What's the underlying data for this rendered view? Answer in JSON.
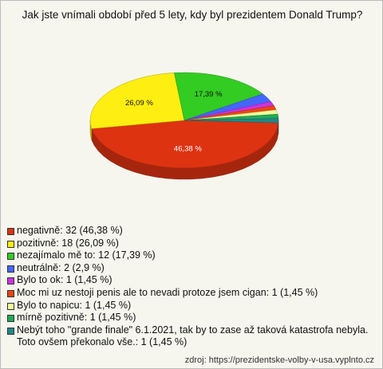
{
  "chart_data": {
    "type": "pie",
    "title": "Jak jste vnímali období před 5 lety, kdy byl prezidentem Donald Trump?",
    "categories": [
      "negativně: 32 (46,38 %)",
      "pozitivně: 18 (26,09 %)",
      "nezajímalo mě to: 12 (17,39 %)",
      "neutrálně: 2 (2,9 %)",
      "Bylo to ok: 1 (1,45 %)",
      "Moc mi uz nestoji penis ale to nevadi protoze jsem cigan: 1 (1,45 %)",
      "Bylo to napicu: 1 (1,45 %)",
      "mírně pozitivně: 1 (1,45 %)",
      "Nebýt toho \"grande finale\" 6.1.2021, tak by to zase až taková katastrofa nebyla. Toto ovšem překonalo vše.: 1 (1,45 %)"
    ],
    "values": [
      46.38,
      26.09,
      17.39,
      2.9,
      1.45,
      1.45,
      1.45,
      1.45,
      1.45
    ],
    "value_labels": [
      "46,38 %",
      "26,09 %",
      "17,39 %",
      null,
      null,
      null,
      null,
      null,
      null
    ],
    "colors": [
      "#dd3311",
      "#ffee11",
      "#33cc22",
      "#4466ff",
      "#cc33dd",
      "#ee4411",
      "#eeff99",
      "#22aa55",
      "#228888"
    ],
    "source": "zdroj: https://prezidentske-volby-v-usa.vyplnto.cz"
  }
}
